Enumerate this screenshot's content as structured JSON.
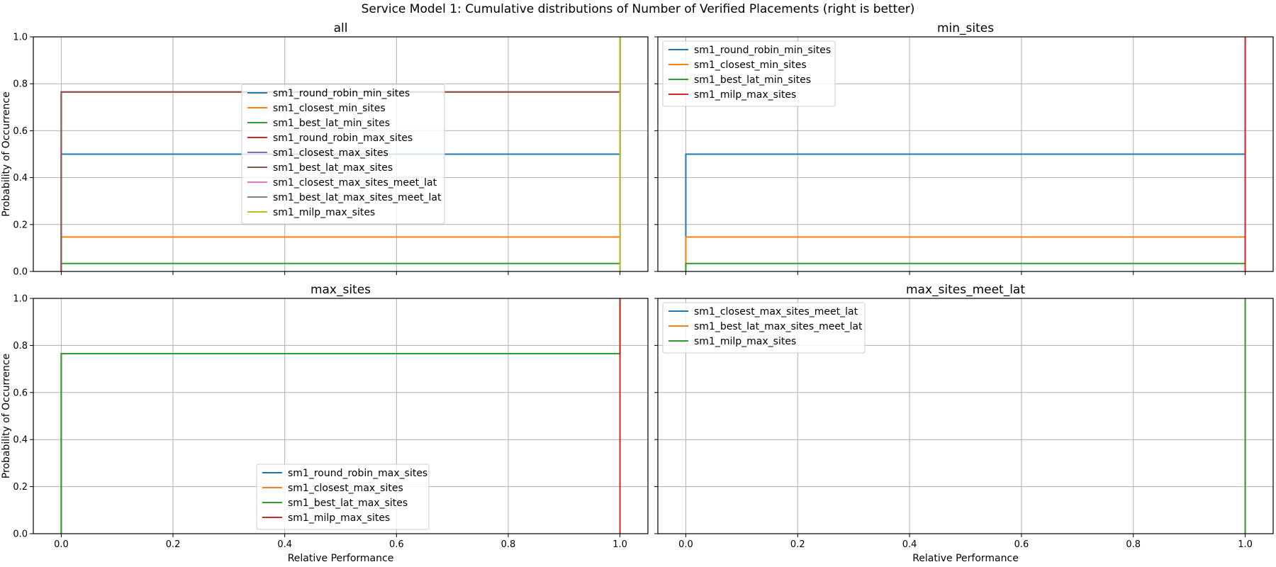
{
  "figure": {
    "title": "Service Model 1: Cumulative distributions of Number of Verified Placements (right is better)"
  },
  "colors": {
    "blue": "#1f77b4",
    "orange": "#ff7f0e",
    "green": "#2ca02c",
    "red": "#d62728",
    "purple": "#9467bd",
    "brown": "#8c564b",
    "pink": "#e377c2",
    "gray": "#7f7f7f",
    "olive": "#bcbd22"
  },
  "chart_data": [
    {
      "type": "line",
      "title": "all",
      "xlabel": "",
      "ylabel": "Probability of Occurrence",
      "xlim": [
        -0.05,
        1.05
      ],
      "ylim": [
        0,
        1
      ],
      "xticks": [
        "0.0",
        "0.2",
        "0.4",
        "0.6",
        "0.8",
        "1.0"
      ],
      "yticks": [
        "0.0",
        "0.2",
        "0.4",
        "0.6",
        "0.8",
        "1.0"
      ],
      "grid": true,
      "legend_position": "center-left",
      "series": [
        {
          "name": "sm1_round_robin_min_sites",
          "color": "#1f77b4",
          "x": [
            0,
            0,
            1,
            1
          ],
          "y": [
            0,
            0.5,
            0.5,
            1
          ]
        },
        {
          "name": "sm1_closest_min_sites",
          "color": "#ff7f0e",
          "x": [
            0,
            0,
            1,
            1
          ],
          "y": [
            0,
            0.147,
            0.147,
            1
          ]
        },
        {
          "name": "sm1_best_lat_min_sites",
          "color": "#2ca02c",
          "x": [
            0,
            0,
            1,
            1
          ],
          "y": [
            0,
            0.034,
            0.034,
            1
          ]
        },
        {
          "name": "sm1_round_robin_max_sites",
          "color": "#d62728",
          "x": [
            0,
            0,
            1,
            1
          ],
          "y": [
            0,
            0.765,
            0.765,
            1
          ]
        },
        {
          "name": "sm1_closest_max_sites",
          "color": "#9467bd",
          "x": [
            0,
            0,
            1,
            1
          ],
          "y": [
            0,
            0.765,
            0.765,
            1
          ]
        },
        {
          "name": "sm1_best_lat_max_sites",
          "color": "#8c564b",
          "x": [
            0,
            0,
            1,
            1
          ],
          "y": [
            0,
            0.765,
            0.765,
            1
          ]
        },
        {
          "name": "sm1_closest_max_sites_meet_lat",
          "color": "#e377c2",
          "x": [
            1,
            1
          ],
          "y": [
            0,
            1
          ]
        },
        {
          "name": "sm1_best_lat_max_sites_meet_lat",
          "color": "#7f7f7f",
          "x": [
            1,
            1
          ],
          "y": [
            0,
            1
          ]
        },
        {
          "name": "sm1_milp_max_sites",
          "color": "#bcbd22",
          "x": [
            1,
            1
          ],
          "y": [
            0,
            1
          ]
        }
      ]
    },
    {
      "type": "line",
      "title": "min_sites",
      "xlabel": "",
      "ylabel": "",
      "xlim": [
        -0.05,
        1.05
      ],
      "ylim": [
        0,
        1
      ],
      "xticks": [
        "0.0",
        "0.2",
        "0.4",
        "0.6",
        "0.8",
        "1.0"
      ],
      "yticks": [
        "0.0",
        "0.2",
        "0.4",
        "0.6",
        "0.8",
        "1.0"
      ],
      "grid": true,
      "legend_position": "top-left",
      "series": [
        {
          "name": "sm1_round_robin_min_sites",
          "color": "#1f77b4",
          "x": [
            0,
            0,
            1,
            1
          ],
          "y": [
            0,
            0.5,
            0.5,
            1
          ]
        },
        {
          "name": "sm1_closest_min_sites",
          "color": "#ff7f0e",
          "x": [
            0,
            0,
            1,
            1
          ],
          "y": [
            0,
            0.147,
            0.147,
            1
          ]
        },
        {
          "name": "sm1_best_lat_min_sites",
          "color": "#2ca02c",
          "x": [
            0,
            0,
            1,
            1
          ],
          "y": [
            0,
            0.034,
            0.034,
            1
          ]
        },
        {
          "name": "sm1_milp_max_sites",
          "color": "#d62728",
          "x": [
            1,
            1
          ],
          "y": [
            0,
            1
          ]
        }
      ]
    },
    {
      "type": "line",
      "title": "max_sites",
      "xlabel": "Relative Performance",
      "ylabel": "Probability of Occurrence",
      "xlim": [
        -0.05,
        1.05
      ],
      "ylim": [
        0,
        1
      ],
      "xticks": [
        "0.0",
        "0.2",
        "0.4",
        "0.6",
        "0.8",
        "1.0"
      ],
      "yticks": [
        "0.0",
        "0.2",
        "0.4",
        "0.6",
        "0.8",
        "1.0"
      ],
      "grid": true,
      "legend_position": "lower-center",
      "series": [
        {
          "name": "sm1_round_robin_max_sites",
          "color": "#1f77b4",
          "x": [
            0,
            0,
            1,
            1
          ],
          "y": [
            0,
            0.765,
            0.765,
            1
          ]
        },
        {
          "name": "sm1_closest_max_sites",
          "color": "#ff7f0e",
          "x": [
            0,
            0,
            1,
            1
          ],
          "y": [
            0,
            0.765,
            0.765,
            1
          ]
        },
        {
          "name": "sm1_best_lat_max_sites",
          "color": "#2ca02c",
          "x": [
            0,
            0,
            1,
            1
          ],
          "y": [
            0,
            0.765,
            0.765,
            1
          ]
        },
        {
          "name": "sm1_milp_max_sites",
          "color": "#d62728",
          "x": [
            1,
            1
          ],
          "y": [
            0,
            1
          ]
        }
      ]
    },
    {
      "type": "line",
      "title": "max_sites_meet_lat",
      "xlabel": "Relative Performance",
      "ylabel": "",
      "xlim": [
        -0.05,
        1.05
      ],
      "ylim": [
        0,
        1
      ],
      "xticks": [
        "0.0",
        "0.2",
        "0.4",
        "0.6",
        "0.8",
        "1.0"
      ],
      "yticks": [
        "0.0",
        "0.2",
        "0.4",
        "0.6",
        "0.8",
        "1.0"
      ],
      "grid": true,
      "legend_position": "top-left",
      "series": [
        {
          "name": "sm1_closest_max_sites_meet_lat",
          "color": "#1f77b4",
          "x": [
            1,
            1
          ],
          "y": [
            0,
            1
          ]
        },
        {
          "name": "sm1_best_lat_max_sites_meet_lat",
          "color": "#ff7f0e",
          "x": [
            1,
            1
          ],
          "y": [
            0,
            1
          ]
        },
        {
          "name": "sm1_milp_max_sites",
          "color": "#2ca02c",
          "x": [
            1,
            1
          ],
          "y": [
            0,
            1
          ]
        }
      ]
    }
  ]
}
